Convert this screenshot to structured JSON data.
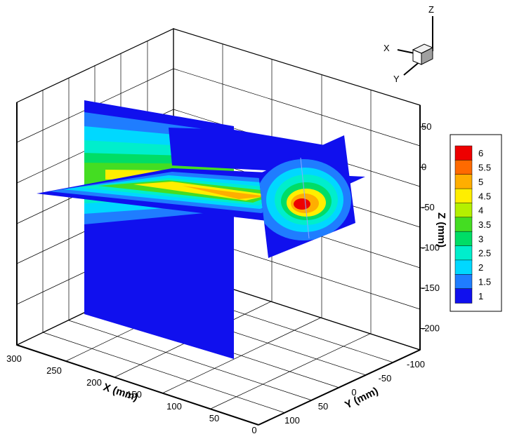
{
  "chart_data": {
    "type": "heatmap",
    "title": "",
    "x_axis": {
      "label": "X (mm)",
      "range": [
        0,
        300
      ],
      "ticks": [
        "300",
        "250",
        "200",
        "150",
        "100",
        "50",
        "0"
      ]
    },
    "y_axis": {
      "label": "Y (mm)",
      "range": [
        -100,
        100
      ],
      "ticks": [
        "-100",
        "-50",
        "0",
        "50",
        "100"
      ]
    },
    "z_axis": {
      "label": "Z (mm)",
      "range": [
        -200,
        50
      ],
      "ticks": [
        "50",
        "0",
        "-50",
        "-100",
        "-150",
        "-200"
      ]
    },
    "orientation_triad": {
      "x": "X",
      "y": "Y",
      "z": "Z"
    },
    "colorbar": {
      "levels": [
        "6",
        "5.5",
        "5",
        "4.5",
        "4",
        "3.5",
        "3",
        "2.5",
        "2",
        "1.5",
        "1"
      ],
      "colors": [
        "#ee0000",
        "#ff6a00",
        "#ffae00",
        "#ffee00",
        "#b4f000",
        "#44dd22",
        "#00dd66",
        "#00eecc",
        "#00d8ff",
        "#1f7dff",
        "#1010ee"
      ],
      "placement": "right"
    },
    "slices": [
      "vertical plane y=0",
      "horizontal plane z=0",
      "cross-section plane x=40"
    ],
    "peak_value": 6,
    "grid": true
  }
}
